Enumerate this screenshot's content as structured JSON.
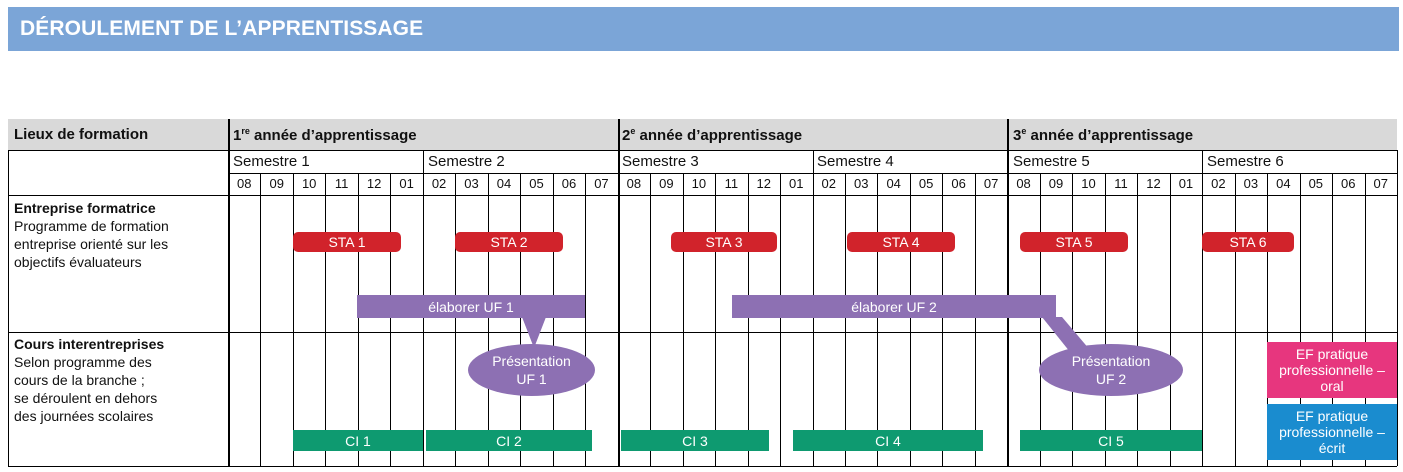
{
  "title": "DÉROULEMENT DE L’APPRENTISSAGE",
  "header": {
    "places_label": "Lieux de formation",
    "years": [
      {
        "num": "1",
        "sup": "re",
        "text": " année d’apprentissage"
      },
      {
        "num": "2",
        "sup": "e",
        "text": " année d’apprentissage"
      },
      {
        "num": "3",
        "sup": "e",
        "text": " année d’apprentissage"
      }
    ],
    "semesters": [
      "Semestre 1",
      "Semestre 2",
      "Semestre 3",
      "Semestre 4",
      "Semestre 5",
      "Semestre 6"
    ],
    "months": [
      "08",
      "09",
      "10",
      "11",
      "12",
      "01",
      "02",
      "03",
      "04",
      "05",
      "06",
      "07",
      "08",
      "09",
      "10",
      "11",
      "12",
      "01",
      "02",
      "03",
      "04",
      "05",
      "06",
      "07",
      "08",
      "09",
      "10",
      "11",
      "12",
      "01",
      "02",
      "03",
      "04",
      "05",
      "06",
      "07"
    ]
  },
  "rows": {
    "entreprise": {
      "title": "Entreprise formatrice",
      "lines": [
        "Programme de formation",
        "entreprise orienté sur les",
        "objectifs évaluateurs"
      ]
    },
    "cours": {
      "title": "Cours interentreprises",
      "lines": [
        "Selon programme des",
        "cours de la branche ;",
        "se déroulent en dehors",
        "des journées scolaires"
      ]
    }
  },
  "sta": [
    "STA 1",
    "STA 2",
    "STA 3",
    "STA 4",
    "STA 5",
    "STA 6"
  ],
  "uf": [
    "élaborer UF 1",
    "élaborer UF 2"
  ],
  "presentations": [
    {
      "line1": "Présentation",
      "line2": "UF 1"
    },
    {
      "line1": "Présentation",
      "line2": "UF 2"
    }
  ],
  "ci": [
    "CI 1",
    "CI 2",
    "CI 3",
    "CI 4",
    "CI 5"
  ],
  "ef": [
    {
      "line1": "EF pratique",
      "line2": "professionnelle –",
      "line3": "oral"
    },
    {
      "line1": "EF pratique",
      "line2": "professionnelle –",
      "line3": "écrit"
    }
  ],
  "colors": {
    "title_bar": "#7ba5d7",
    "header_bg": "#d9d9d9",
    "sta": "#d1232b",
    "ci": "#0e9a70",
    "uf": "#8d70b3",
    "ef_oral": "#e7367e",
    "ef_ecrit": "#1a8ccf"
  }
}
